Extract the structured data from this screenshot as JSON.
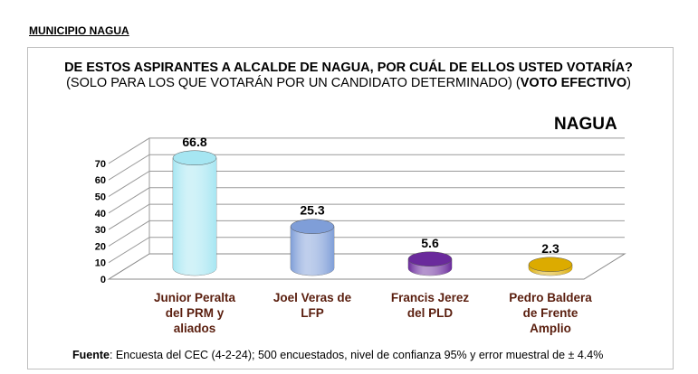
{
  "heading": "MUNICIPIO NAGUA",
  "title": {
    "bold1": "DE ESTOS ASPIRANTES A ALCALDE DE NAGUA, POR CUÁL DE ELLOS USTED VOTARÍA?",
    "normal": " (SOLO PARA LOS QUE VOTARÁN POR UN CANDIDATO DETERMINADO) (",
    "bold2": "VOTO EFECTIVO",
    "end": ")"
  },
  "source": {
    "bold": "Fuente",
    "text": ": Encuesta del CEC (4-2-24); 500 encuestados, nivel de confianza 95% y error muestral de ± 4.4%"
  },
  "chart_data": {
    "type": "bar",
    "title": "NAGUA",
    "categories": [
      [
        "Junior Peralta",
        "del PRM y",
        "aliados"
      ],
      [
        "Joel Veras de",
        "LFP"
      ],
      [
        "Francis Jerez",
        "del PLD"
      ],
      [
        "Pedro Baldera",
        "de Frente",
        "Amplio"
      ]
    ],
    "values": [
      66.8,
      25.3,
      5.6,
      2.3
    ],
    "value_labels": [
      "66.8",
      "25.3",
      "5.6",
      "2.3"
    ],
    "colors": [
      "#a6e6f2",
      "#7f9ed8",
      "#6a2a9c",
      "#dcab00"
    ],
    "yticks": [
      "0",
      "10",
      "20",
      "30",
      "40",
      "50",
      "60",
      "70"
    ],
    "ylim": [
      0,
      70
    ],
    "grid": true
  }
}
